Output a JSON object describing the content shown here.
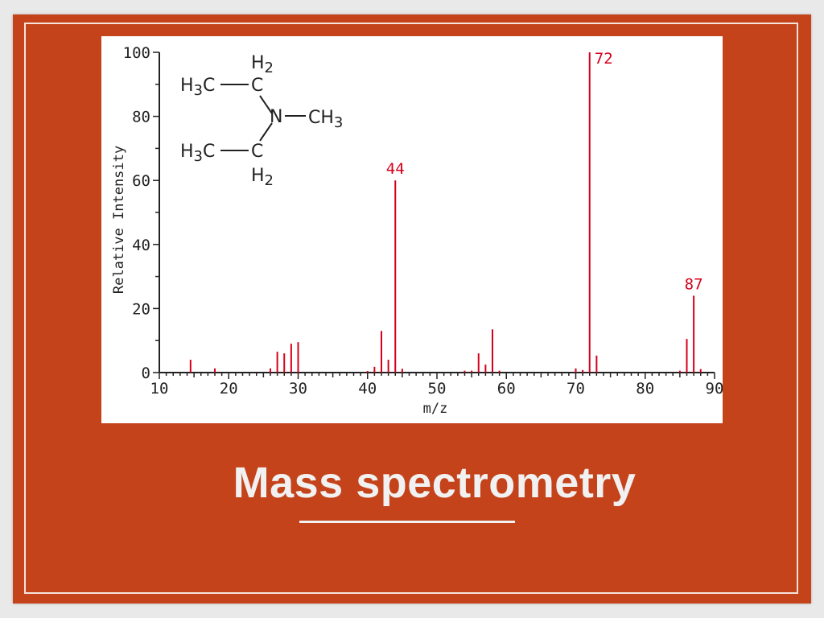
{
  "slide": {
    "title": "Mass spectrometry",
    "background_color": "#c4431a",
    "text_color": "#f1f1f1"
  },
  "chart_data": {
    "type": "bar",
    "xlabel": "m/z",
    "ylabel": "Relative Intensity",
    "xlim": [
      10,
      90
    ],
    "ylim": [
      0,
      100
    ],
    "x_ticks": [
      10,
      20,
      30,
      40,
      50,
      60,
      70,
      80,
      90
    ],
    "y_ticks": [
      0,
      20,
      40,
      60,
      80,
      100
    ],
    "bar_color": "#d6001c",
    "peaks": [
      {
        "x": 14.5,
        "y": 4
      },
      {
        "x": 18,
        "y": 1.3
      },
      {
        "x": 26,
        "y": 1.3
      },
      {
        "x": 27,
        "y": 6.5
      },
      {
        "x": 28,
        "y": 6
      },
      {
        "x": 29,
        "y": 9
      },
      {
        "x": 30,
        "y": 9.5
      },
      {
        "x": 40,
        "y": 0.5
      },
      {
        "x": 41,
        "y": 1.8
      },
      {
        "x": 42,
        "y": 13
      },
      {
        "x": 43,
        "y": 4
      },
      {
        "x": 44,
        "y": 60
      },
      {
        "x": 45,
        "y": 1.2
      },
      {
        "x": 54,
        "y": 0.6
      },
      {
        "x": 55,
        "y": 0.6
      },
      {
        "x": 56,
        "y": 6
      },
      {
        "x": 57,
        "y": 2.5
      },
      {
        "x": 58,
        "y": 13.5
      },
      {
        "x": 59,
        "y": 0.6
      },
      {
        "x": 70,
        "y": 1.3
      },
      {
        "x": 71,
        "y": 0.8
      },
      {
        "x": 72,
        "y": 100
      },
      {
        "x": 73,
        "y": 5.3
      },
      {
        "x": 85,
        "y": 0.6
      },
      {
        "x": 86,
        "y": 10.5
      },
      {
        "x": 87,
        "y": 24
      },
      {
        "x": 88,
        "y": 1.1
      }
    ],
    "annotations": [
      {
        "x": 44,
        "y": 60,
        "label": "44"
      },
      {
        "x": 72,
        "y": 100,
        "label": "72"
      },
      {
        "x": 87,
        "y": 24,
        "label": "87"
      }
    ],
    "structure": {
      "h2_top": "H2",
      "h3c_top": "H3C",
      "c_top": "C",
      "n": "N",
      "ch3": "CH3",
      "h3c_bottom": "H3C",
      "c_bottom": "C",
      "h2_bottom": "H2"
    }
  }
}
